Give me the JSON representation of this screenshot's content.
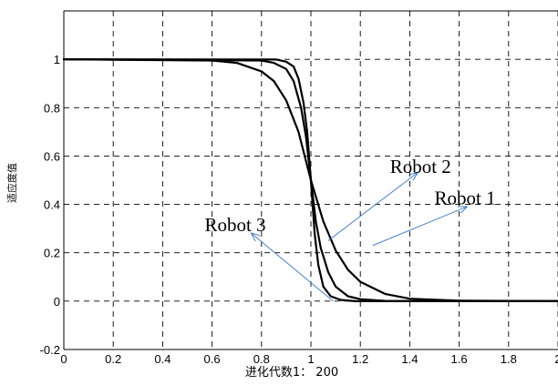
{
  "chart_data": {
    "type": "line",
    "title": "",
    "xlabel": "进化代数1： 200",
    "ylabel": "适应度值",
    "xlim": [
      0,
      2
    ],
    "ylim": [
      -0.2,
      1.2
    ],
    "x_ticks": [
      0,
      0.2,
      0.4,
      0.6,
      0.8,
      1,
      1.2,
      1.4,
      1.6,
      1.8,
      2
    ],
    "x_tick_labels": [
      "0",
      "0.2",
      "0.4",
      "0.6",
      "0.8",
      "1",
      "1.2",
      "1.4",
      "1.6",
      "1.8",
      "2"
    ],
    "y_ticks": [
      -0.2,
      0,
      0.2,
      0.4,
      0.6,
      0.8,
      1
    ],
    "y_tick_labels": [
      "-0.2",
      "0",
      "0.2",
      "0.4",
      "0.6",
      "0.8",
      "1"
    ],
    "grid": true,
    "grid_style": "dashed",
    "line_color": "#000000",
    "arrow_color": "#4a7fc1",
    "series": [
      {
        "x": [
          0,
          0.6,
          0.7,
          0.8,
          0.85,
          0.9,
          0.95,
          1.0,
          1.05,
          1.1,
          1.15,
          1.2,
          1.3,
          1.4,
          1.6,
          2.0
        ],
        "y": [
          1,
          0.995,
          0.985,
          0.95,
          0.91,
          0.83,
          0.7,
          0.5,
          0.33,
          0.21,
          0.13,
          0.08,
          0.03,
          0.01,
          0.002,
          0
        ]
      },
      {
        "x": [
          0,
          0.8,
          0.85,
          0.9,
          0.93,
          0.96,
          0.98,
          1.0,
          1.02,
          1.04,
          1.07,
          1.1,
          1.15,
          1.2,
          1.3,
          2.0
        ],
        "y": [
          1,
          0.995,
          0.985,
          0.96,
          0.91,
          0.8,
          0.68,
          0.5,
          0.33,
          0.22,
          0.12,
          0.06,
          0.02,
          0.008,
          0.001,
          0
        ]
      },
      {
        "x": [
          0,
          0.86,
          0.9,
          0.93,
          0.95,
          0.97,
          0.985,
          1.0,
          1.015,
          1.03,
          1.05,
          1.08,
          1.12,
          1.18,
          2.0
        ],
        "y": [
          1,
          0.999,
          0.99,
          0.97,
          0.92,
          0.82,
          0.7,
          0.5,
          0.28,
          0.15,
          0.06,
          0.02,
          0.005,
          0,
          0
        ]
      }
    ],
    "annotations": [
      {
        "text": "Robot 2",
        "label_at": [
          1.32,
          0.53
        ],
        "arrow_from": [
          1.07,
          0.25
        ],
        "arrow_to": [
          1.43,
          0.53
        ]
      },
      {
        "text": "Robot 1",
        "label_at": [
          1.5,
          0.4
        ],
        "arrow_from": [
          1.25,
          0.23
        ],
        "arrow_to": [
          1.63,
          0.39
        ]
      },
      {
        "text": "Robot 3",
        "label_at": [
          0.57,
          0.29
        ],
        "arrow_from": [
          1.09,
          0.0
        ],
        "arrow_to": [
          0.76,
          0.28
        ]
      }
    ]
  }
}
